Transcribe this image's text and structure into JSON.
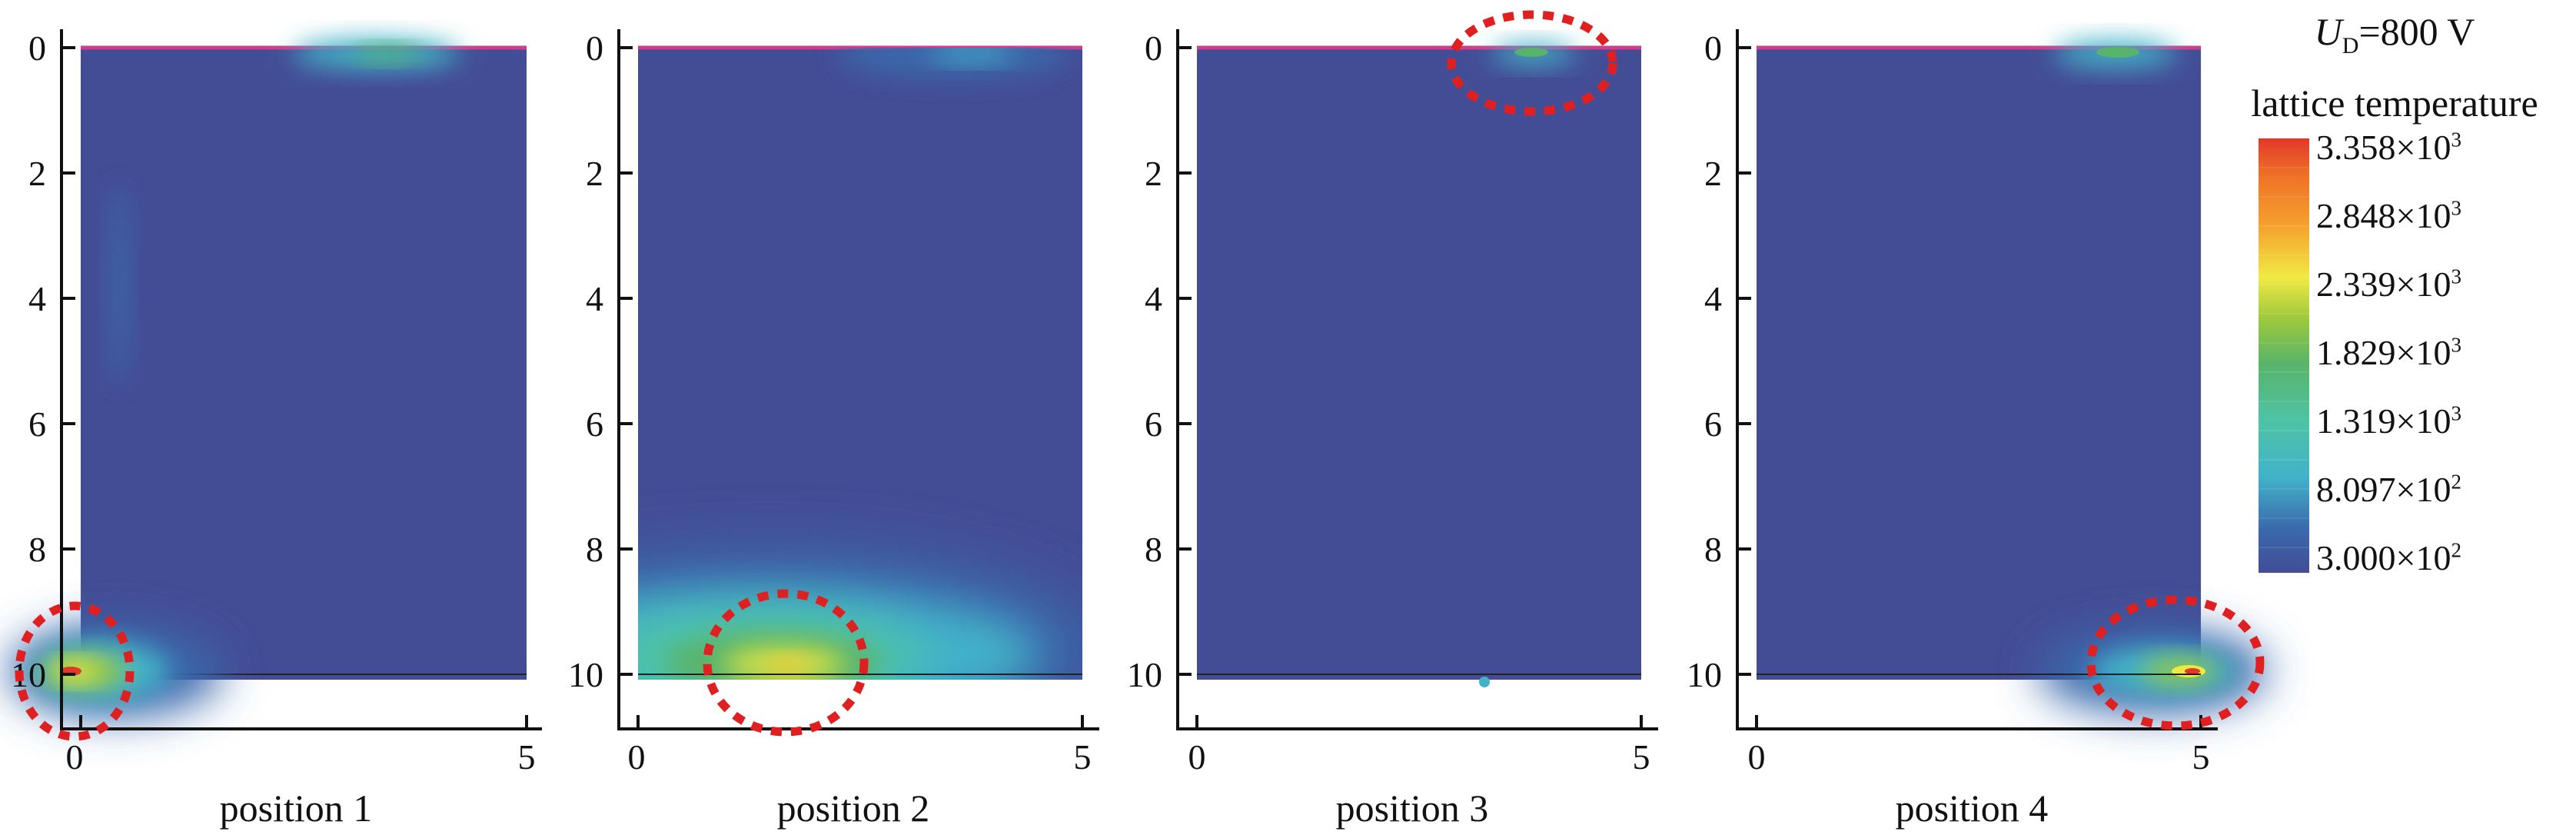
{
  "chart_data": {
    "type": "heatmap",
    "panels": [
      {
        "title": "position 1",
        "xticks": [
          "0",
          "5"
        ],
        "yticks": [
          "0",
          "2",
          "4",
          "6",
          "8",
          "10"
        ],
        "hotspot": {
          "x": 0.3,
          "y": 10.0,
          "peak": "high"
        }
      },
      {
        "title": "position 2",
        "xticks": [
          "0",
          "5"
        ],
        "yticks": [
          "0",
          "2",
          "4",
          "6",
          "8",
          "10"
        ],
        "hotspot": {
          "x": 1.6,
          "y": 9.8,
          "peak": "mid"
        }
      },
      {
        "title": "position 3",
        "xticks": [
          "0",
          "5"
        ],
        "yticks": [
          "0",
          "2",
          "4",
          "6",
          "8",
          "10"
        ],
        "hotspot": {
          "x": 3.8,
          "y": 0.1,
          "peak": "low"
        }
      },
      {
        "title": "position 4",
        "xticks": [
          "0",
          "5"
        ],
        "yticks": [
          "0",
          "2",
          "4",
          "6",
          "8",
          "10"
        ],
        "hotspot": {
          "x": 4.8,
          "y": 10.0,
          "peak": "high"
        }
      }
    ],
    "xlim": [
      0,
      5
    ],
    "ylim": [
      0,
      10.8
    ],
    "legend": {
      "symbol": "U",
      "subscript": "D",
      "value": "=800 V",
      "quantity": "lattice temperature",
      "labels": [
        {
          "mantissa": "3.358×10",
          "exp": "3"
        },
        {
          "mantissa": "2.848×10",
          "exp": "3"
        },
        {
          "mantissa": "2.339×10",
          "exp": "3"
        },
        {
          "mantissa": "1.829×10",
          "exp": "3"
        },
        {
          "mantissa": "1.319×10",
          "exp": "3"
        },
        {
          "mantissa": "8.097×10",
          "exp": "2"
        },
        {
          "mantissa": "3.000×10",
          "exp": "2"
        }
      ],
      "range": [
        300,
        3358
      ]
    },
    "colors": [
      "#434d95",
      "#3b68ac",
      "#3a8dc6",
      "#42b2c9",
      "#4fc3a7",
      "#58b46a",
      "#6cb43c",
      "#99c83e",
      "#cde04a",
      "#f1e943",
      "#f7c936",
      "#f4a12d",
      "#ef7428",
      "#e84b26",
      "#e23828"
    ],
    "highlight_color": "#e02020",
    "background_color": "#434d95"
  }
}
